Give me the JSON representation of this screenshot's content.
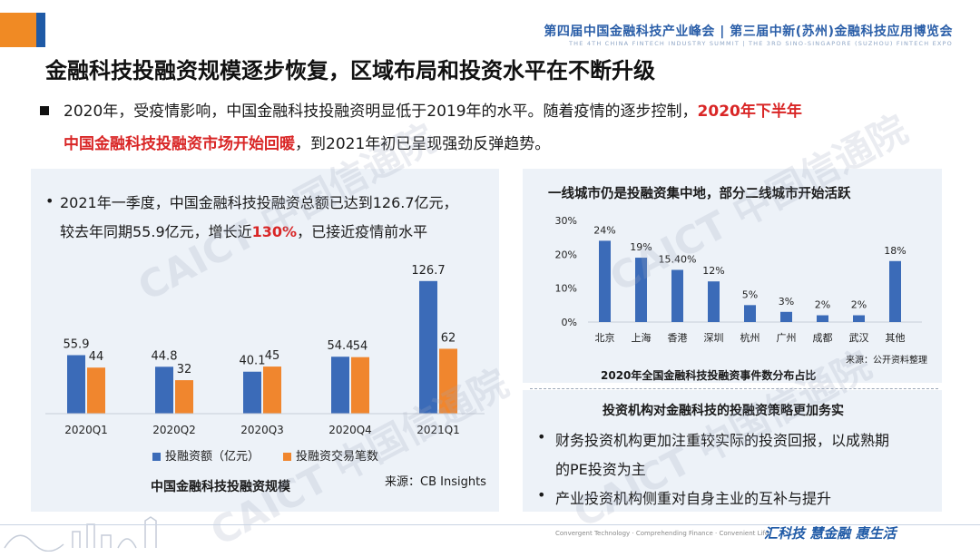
{
  "header": {
    "summit_cn": "第四届中国金融科技产业峰会 | 第三届中新(苏州)金融科技应用博览会",
    "summit_en": "THE 4TH CHINA FINTECH INDUSTRY SUMMIT | THE 3RD SINO-SINGAPORE (SUZHOU) FINTECH EXPO"
  },
  "title": "金融科技投融资规模逐步恢复，区域布局和投资水平在不断升级",
  "intro": {
    "part1": "2020年，受疫情影响，中国金融科技投融资明显低于2019年的水平。随着疫情的逐步控制，",
    "red1": "2020年下半年",
    "red2": "中国金融科技投融资市场开始回暖",
    "part2": "，到2021年初已呈现强劲反弹趋势。"
  },
  "left_panel": {
    "bullet": "•",
    "text_line1": "2021年一季度，中国金融科技投融资总额已达到126.7亿元，",
    "text_line2_a": "较去年同期55.9亿元，增长近",
    "text_line2_red": "130%",
    "text_line2_b": "，已接近疫情前水平",
    "source": "来源：CB Insights",
    "caption": "中国金融科技投融资规模"
  },
  "right_top": {
    "title": "一线城市仍是投融资集中地，部分二线城市开始活跃",
    "source": "来源：公开资料整理",
    "caption": "2020年全国金融科技投融资事件数分布占比"
  },
  "right_bottom": {
    "title": "投资机构对金融科技的投融资策略更加务实",
    "bullets": [
      {
        "marker": "•",
        "line1": "财务投资机构更加注重较实际的投资回报，以成熟期",
        "line2": "的PE投资为主"
      },
      {
        "marker": "•",
        "line1": "产业投资机构侧重对自身主业的互补与提升",
        "line2": ""
      }
    ]
  },
  "footer": {
    "en": "Convergent Technology · Comprehending Finance · Convenient Life",
    "brand": "汇科技 慧金融 惠生活"
  },
  "watermark": "CAICT 中国信通院",
  "colors": {
    "blue": "#3b6bb8",
    "orange": "#f0862e",
    "red": "#d92626",
    "panel": "#edf2f8"
  },
  "chart_data": [
    {
      "type": "bar",
      "title": "中国金融科技投融资规模",
      "categories": [
        "2020Q1",
        "2020Q2",
        "2020Q3",
        "2020Q4",
        "2021Q1"
      ],
      "series": [
        {
          "name": "投融资额（亿元）",
          "values": [
            55.9,
            44.8,
            40.1,
            54.4,
            126.7
          ],
          "color": "#3b6bb8"
        },
        {
          "name": "投融资交易笔数",
          "values": [
            44,
            32,
            45,
            54,
            62
          ],
          "color": "#f0862e"
        }
      ],
      "value_labels": [
        [
          "55.9",
          "44.8",
          "40.1",
          "54.4",
          "126.7"
        ],
        [
          "44",
          "32",
          "45",
          "54",
          "62"
        ]
      ],
      "grid": false,
      "legend": "bottom"
    },
    {
      "type": "bar",
      "title": "2020年全国金融科技投融资事件数分布占比",
      "categories": [
        "北京",
        "上海",
        "香港",
        "深圳",
        "杭州",
        "广州",
        "成都",
        "武汉",
        "其他"
      ],
      "values": [
        24,
        19,
        15.4,
        12,
        5,
        3,
        2,
        2,
        18
      ],
      "value_labels": [
        "24%",
        "19%",
        "15.40%",
        "12%",
        "5%",
        "3%",
        "2%",
        "2%",
        "18%"
      ],
      "y_ticks": [
        "0%",
        "10%",
        "20%",
        "30%"
      ],
      "ylim": [
        0,
        30
      ],
      "color": "#3b6bb8",
      "grid": false
    }
  ]
}
